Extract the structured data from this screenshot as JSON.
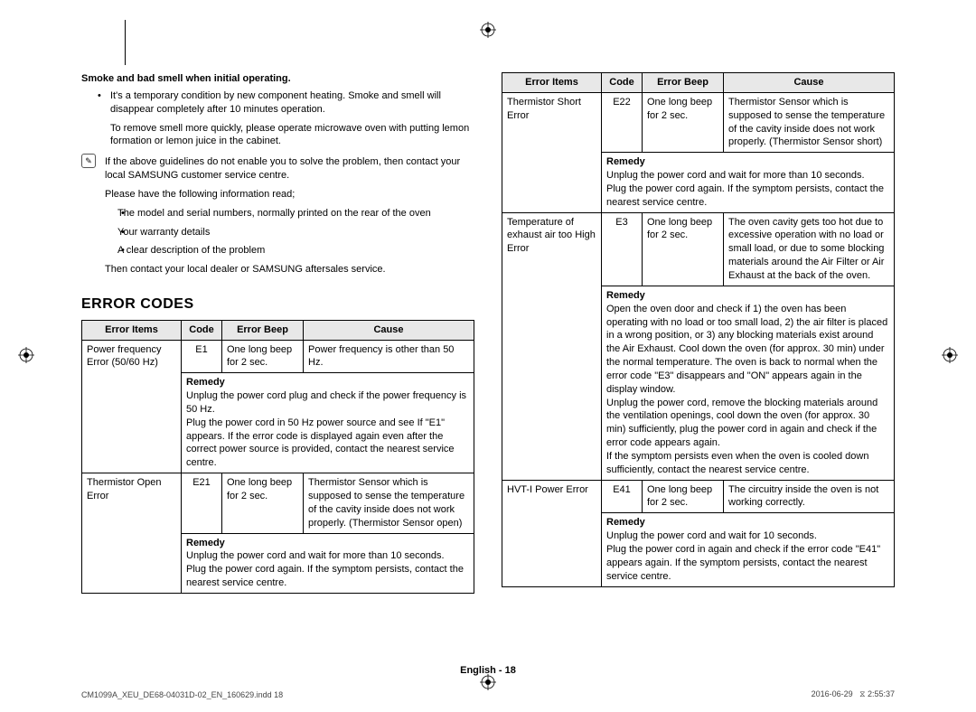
{
  "page": {
    "footer_center": "English - 18",
    "footer_left": "CM1099A_XEU_DE68-04031D-02_EN_160629.indd   18",
    "footer_right_date": "2016-06-29",
    "footer_right_time": "2:55:37",
    "footer_right_icon_label": "⧖"
  },
  "intro": {
    "subhead": "Smoke and bad smell when initial operating.",
    "bullet1": "It's a temporary condition by new component heating. Smoke and smell will disappear completely after 10 minutes operation.",
    "bullet1b": "To remove smell more quickly, please operate microwave oven with putting lemon formation or lemon juice in the cabinet.",
    "note_icon": "✎",
    "note": "If the above guidelines do not enable you to solve the problem, then contact your local SAMSUNG customer service centre.",
    "note2": "Please have the following information read;",
    "bullet2": "The model and serial numbers, normally printed on the rear of the oven",
    "bullet3": "Your warranty details",
    "bullet4": "A clear description of the problem",
    "note3": "Then contact your local dealer or SAMSUNG aftersales service."
  },
  "section_title": "ERROR CODES",
  "headers": {
    "items": "Error Items",
    "code": "Code",
    "beep": "Error Beep",
    "cause": "Cause",
    "remedy": "Remedy"
  },
  "colwidths": {
    "items": "110px",
    "code": "45px",
    "beep": "90px"
  },
  "left_rows": [
    {
      "item": "Power frequency Error (50/60 Hz)",
      "code": "E1",
      "beep": "One long beep for 2 sec.",
      "cause": "Power frequency is other than 50 Hz.",
      "remedy": "Unplug the power cord plug and check if the power frequency is 50 Hz.\nPlug the power cord in 50 Hz power source and see If \"E1\" appears. If the error code is displayed again even after the correct power source is provided, contact the nearest service centre."
    },
    {
      "item": "Thermistor Open Error",
      "code": "E21",
      "beep": "One long beep for 2 sec.",
      "cause": "Thermistor Sensor which is supposed to sense the temperature of the cavity inside does not work properly. (Thermistor Sensor open)",
      "remedy": "Unplug the power cord and wait for more than 10 seconds.\nPlug the power cord again. If the symptom persists, contact the nearest service centre."
    }
  ],
  "right_rows": [
    {
      "item": "Thermistor Short Error",
      "code": "E22",
      "beep": "One long beep for 2 sec.",
      "cause": "Thermistor Sensor which is supposed to sense the temperature of the cavity inside does not work properly. (Thermistor Sensor short)",
      "remedy": "Unplug the power cord and wait for more than 10 seconds.\nPlug the power cord again. If the symptom persists, contact the nearest service centre."
    },
    {
      "item": "Temperature of exhaust air too High Error",
      "code": "E3",
      "beep": "One long beep for 2 sec.",
      "cause": "The oven cavity gets too hot due to excessive operation with no load or small load, or due to some blocking materials around the Air Filter or Air Exhaust at the back of the oven.",
      "remedy": "Open the oven door and check if 1) the oven has been operating with no load or too small load, 2) the air filter is placed in a wrong position, or 3) any blocking materials exist around the Air Exhaust. Cool down the oven (for approx. 30 min) under the normal temperature. The oven is back to normal when the error code \"E3\" disappears and \"ON\" appears again in the display window.\nUnplug the power cord, remove the blocking materials around the ventilation openings, cool down the oven (for approx. 30 min) sufficiently, plug the power cord in again and check if the error code appears again.\nIf the symptom persists even when the oven is cooled down sufficiently, contact the nearest service centre."
    },
    {
      "item": "HVT-I Power Error",
      "code": "E41",
      "beep": "One long beep for 2 sec.",
      "cause": "The circuitry inside the oven is not working correctly.",
      "remedy": "Unplug the power cord and wait for 10 seconds.\nPlug the power cord in again and check if the error code \"E41\" appears again. If the symptom persists, contact the nearest service centre."
    }
  ]
}
